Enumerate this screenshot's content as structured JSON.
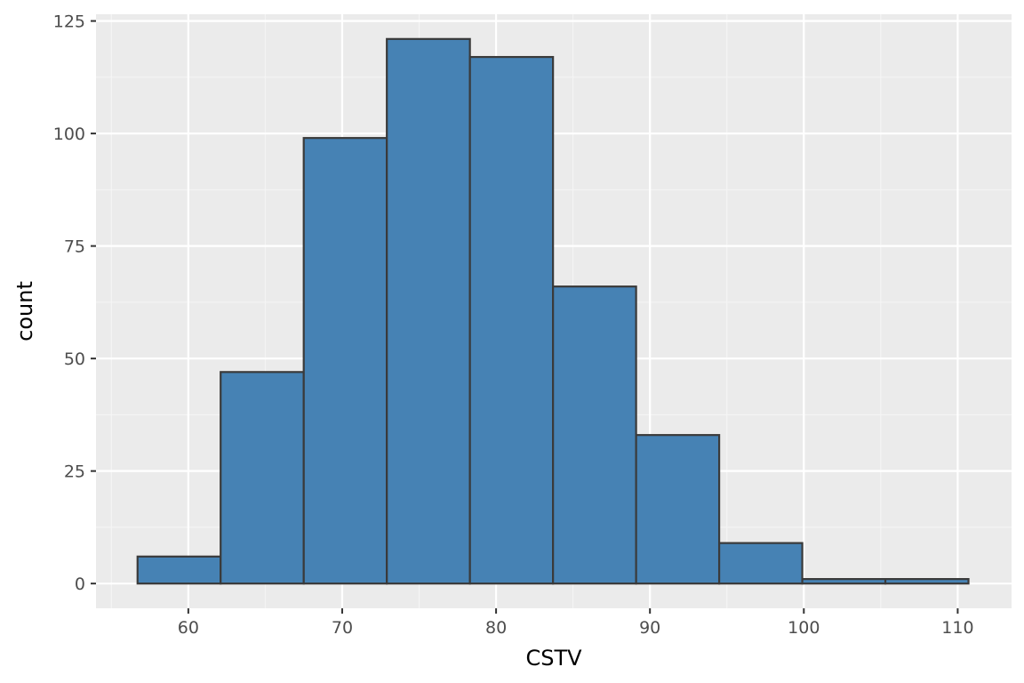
{
  "chart_data": {
    "type": "bar",
    "subtype": "histogram",
    "xlabel": "CSTV",
    "ylabel": "count",
    "xlim": [
      54.0,
      113.5
    ],
    "ylim": [
      -5.5,
      126.5
    ],
    "x_ticks": [
      60,
      70,
      80,
      90,
      100,
      110
    ],
    "y_ticks": [
      0,
      25,
      50,
      75,
      100,
      125
    ],
    "bin_width": 5.4,
    "bins": [
      {
        "x0": 56.7,
        "x1": 62.1,
        "count": 6
      },
      {
        "x0": 62.1,
        "x1": 67.5,
        "count": 47
      },
      {
        "x0": 67.5,
        "x1": 72.9,
        "count": 99
      },
      {
        "x0": 72.9,
        "x1": 78.3,
        "count": 121
      },
      {
        "x0": 78.3,
        "x1": 83.7,
        "count": 117
      },
      {
        "x0": 83.7,
        "x1": 89.1,
        "count": 66
      },
      {
        "x0": 89.1,
        "x1": 94.5,
        "count": 33
      },
      {
        "x0": 94.5,
        "x1": 99.9,
        "count": 9
      },
      {
        "x0": 99.9,
        "x1": 105.3,
        "count": 1
      },
      {
        "x0": 105.3,
        "x1": 110.7,
        "count": 1
      }
    ],
    "grid": true,
    "legend": "none",
    "colors": {
      "panel_background": "#ebebeb",
      "grid_major": "#ffffff",
      "grid_minor": "#f5f5f5",
      "bar_fill": "#4682b4",
      "bar_outline": "#3a3a3a",
      "tick_text": "#4d4d4d",
      "tick_mark": "#333333",
      "axis_title": "#000000"
    }
  }
}
